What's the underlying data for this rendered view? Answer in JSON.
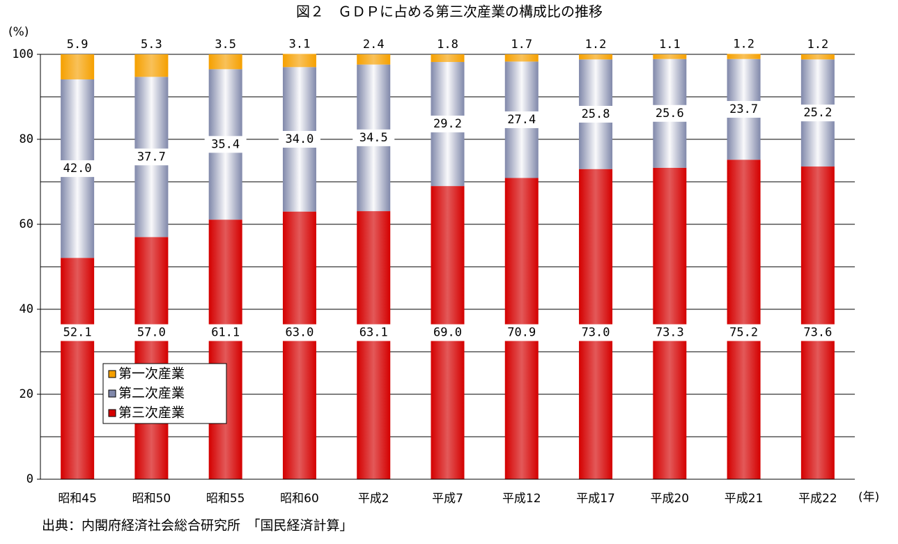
{
  "chart_data": {
    "type": "stacked_bar",
    "title": "図２　ＧＤＰに占める第三次産業の構成比の推移",
    "y_unit": "(%)",
    "x_unit": "(年)",
    "source": "出典：内閣府経済社会総合研究所　「国民経済計算」",
    "categories": [
      "昭和45",
      "昭和50",
      "昭和55",
      "昭和60",
      "平成2",
      "平成7",
      "平成12",
      "平成17",
      "平成20",
      "平成21",
      "平成22"
    ],
    "series": [
      {
        "name": "第三次産業",
        "color": "#d40000",
        "values": [
          52.1,
          57.0,
          61.1,
          63.0,
          63.1,
          69.0,
          70.9,
          73.0,
          73.3,
          75.2,
          73.6
        ],
        "value_labels": [
          "52.1",
          "57.0",
          "61.1",
          "63.0",
          "63.1",
          "69.0",
          "70.9",
          "73.0",
          "73.3",
          "75.2",
          "73.6"
        ]
      },
      {
        "name": "第二次産業",
        "color": "#8088aa",
        "values": [
          42.0,
          37.7,
          35.4,
          34.0,
          34.5,
          29.2,
          27.4,
          25.8,
          25.6,
          23.7,
          25.2
        ],
        "value_labels": [
          "42.0",
          "37.7",
          "35.4",
          "34.0",
          "34.5",
          "29.2",
          "27.4",
          "25.8",
          "25.6",
          "23.7",
          "25.2"
        ]
      },
      {
        "name": "第一次産業",
        "color": "#f5a000",
        "values": [
          5.9,
          5.3,
          3.5,
          3.1,
          2.4,
          1.8,
          1.7,
          1.2,
          1.1,
          1.2,
          1.2
        ],
        "value_labels": [
          "5.9",
          "5.3",
          "3.5",
          "3.1",
          "2.4",
          "1.8",
          "1.7",
          "1.2",
          "1.1",
          "1.2",
          "1.2"
        ]
      }
    ],
    "ylim": [
      0,
      100
    ],
    "yticks": [
      0,
      20,
      40,
      60,
      80,
      100
    ],
    "grid": true,
    "minor_grid": [
      10,
      30,
      50,
      70,
      90
    ],
    "legend_position": "lower-left"
  }
}
